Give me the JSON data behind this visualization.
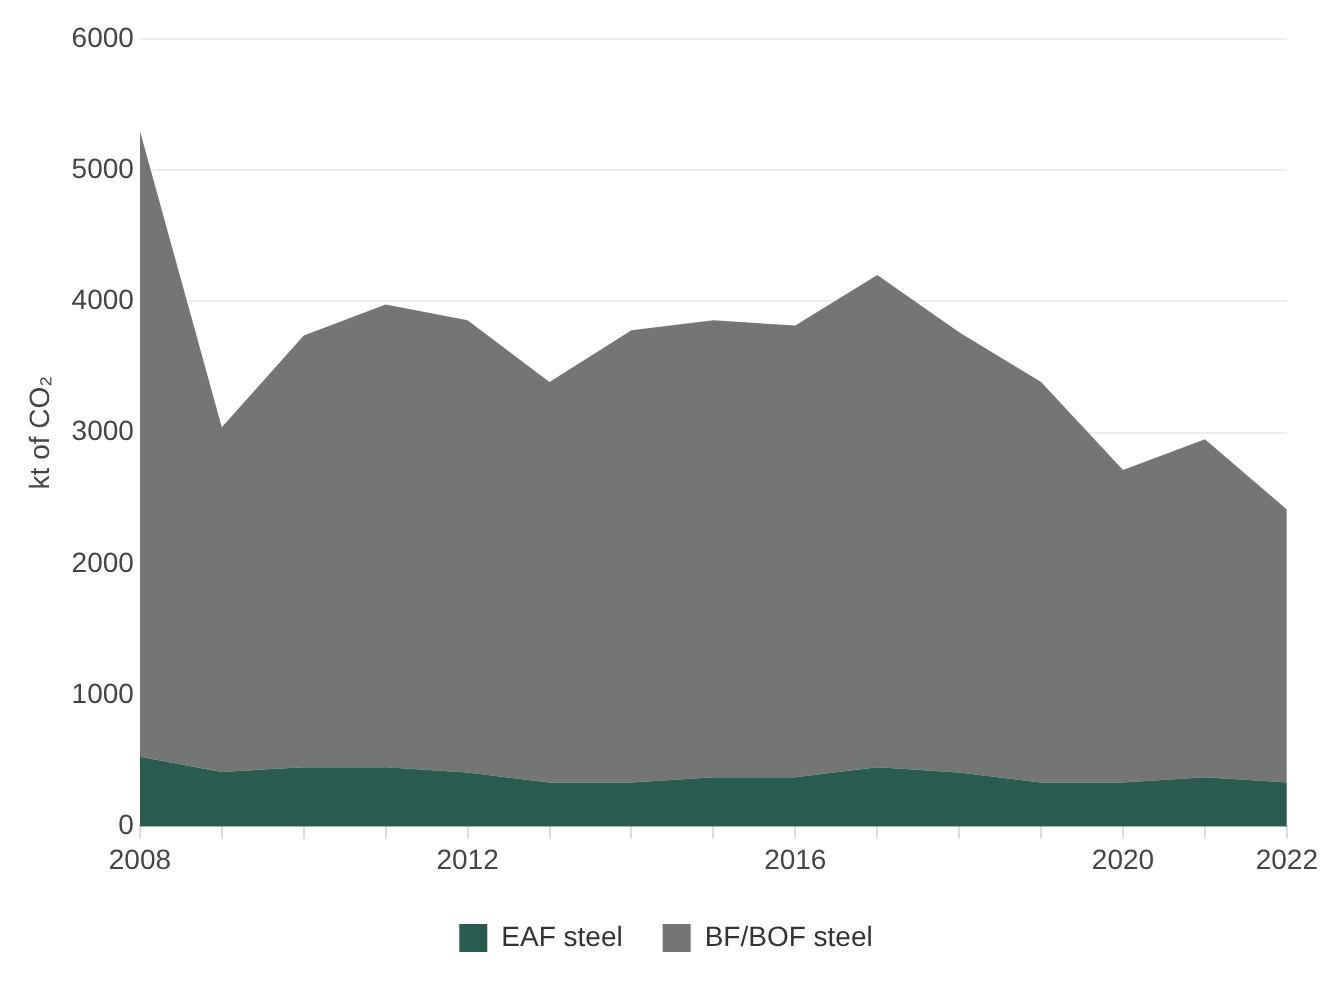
{
  "chart_data": {
    "type": "area",
    "ylabel": "kt of CO₂",
    "stacked": true,
    "x": [
      2008,
      2009,
      2010,
      2011,
      2012,
      2013,
      2014,
      2015,
      2016,
      2017,
      2018,
      2019,
      2020,
      2021,
      2022
    ],
    "series": [
      {
        "name": "EAF steel",
        "color": "#2a5b4f",
        "values": [
          530,
          415,
          450,
          450,
          410,
          335,
          335,
          375,
          375,
          450,
          410,
          335,
          335,
          375,
          335
        ]
      },
      {
        "name": "BF/BOF steel",
        "color": "#737675",
        "values": [
          4770,
          2625,
          3290,
          3525,
          3445,
          3050,
          3445,
          3480,
          3440,
          3750,
          3355,
          3050,
          2380,
          2575,
          2080
        ]
      }
    ],
    "xlim": [
      2008,
      2022
    ],
    "xticks": [
      2008,
      {
        "value": 2009,
        "label": null
      },
      {
        "value": 2010,
        "label": null
      },
      {
        "value": 2011,
        "label": null
      },
      2012,
      {
        "value": 2013,
        "label": null
      },
      {
        "value": 2014,
        "label": null
      },
      {
        "value": 2015,
        "label": null
      },
      2016,
      {
        "value": 2017,
        "label": null
      },
      {
        "value": 2018,
        "label": null
      },
      {
        "value": 2019,
        "label": null
      },
      2020,
      {
        "value": 2021,
        "label": null
      },
      2022
    ],
    "ylim": [
      0,
      6000
    ],
    "yticks": [
      0,
      1000,
      2000,
      3000,
      4000,
      5000,
      6000
    ],
    "grid": "y",
    "legend": "bottom"
  }
}
